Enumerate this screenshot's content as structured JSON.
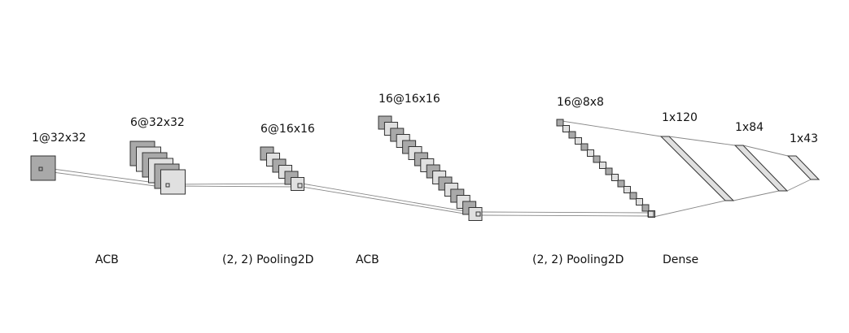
{
  "colors": {
    "fill_dark": "#a9a9a9",
    "fill_light": "#e0e0e0",
    "stroke": "#333333",
    "connector": "#888888",
    "background": "#ffffff"
  },
  "layers": [
    {
      "size_label": "1@32x32",
      "maps": 1,
      "kind": "feature-maps"
    },
    {
      "size_label": "6@32x32",
      "maps": 6,
      "kind": "feature-maps"
    },
    {
      "size_label": "6@16x16",
      "maps": 6,
      "kind": "feature-maps"
    },
    {
      "size_label": "16@16x16",
      "maps": 16,
      "kind": "feature-maps"
    },
    {
      "size_label": "16@8x8",
      "maps": 16,
      "kind": "feature-maps"
    },
    {
      "size_label": "1x120",
      "kind": "dense"
    },
    {
      "size_label": "1x84",
      "kind": "dense"
    },
    {
      "size_label": "1x43",
      "kind": "dense"
    }
  ],
  "operations": [
    {
      "label": "ACB"
    },
    {
      "label": "(2, 2) Pooling2D"
    },
    {
      "label": "ACB"
    },
    {
      "label": "(2, 2) Pooling2D"
    },
    {
      "label": "Dense"
    }
  ]
}
